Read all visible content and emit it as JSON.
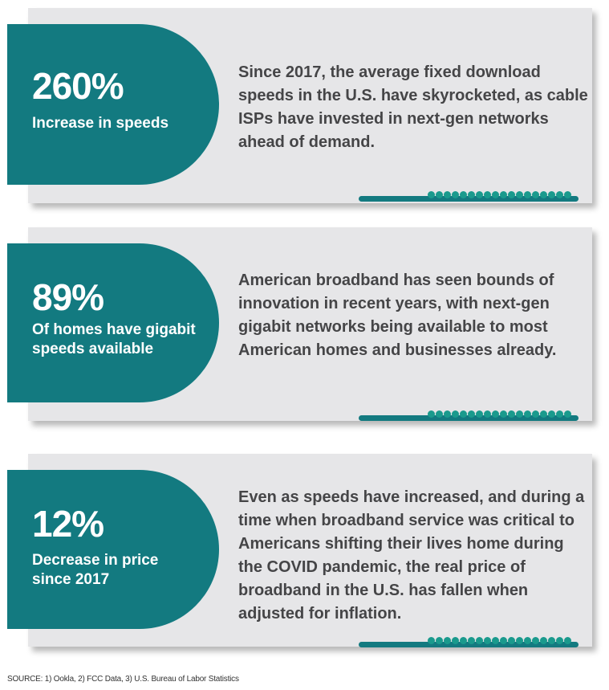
{
  "stats": [
    {
      "value": "260%",
      "label": "Increase in speeds",
      "description": "Since 2017, the average fixed download speeds in the U.S. have skyrocketed, as cable ISPs have invested in next-gen networks ahead of demand."
    },
    {
      "value": "89%",
      "label": "Of homes have gigabit speeds available",
      "description": "American broadband has seen bounds of innovation in recent years, with next-gen gigabit networks being available to most American homes and businesses already."
    },
    {
      "value": "12%",
      "label": "Decrease in price since 2017",
      "description": "Even as speeds have increased, and during a time when broadband service was critical to Americans shifting their lives home during the COVID pandemic, the real price of broadband in the U.S. has fallen when adjusted for inflation."
    }
  ],
  "source": "SOURCE: 1) Ookla, 2) FCC Data, 3) U.S. Bureau of Labor Statistics",
  "colors": {
    "teal": "#137a80",
    "dot_teal": "#1a9a8d",
    "card_gray": "#e6e6e8",
    "text_gray": "#454547"
  }
}
